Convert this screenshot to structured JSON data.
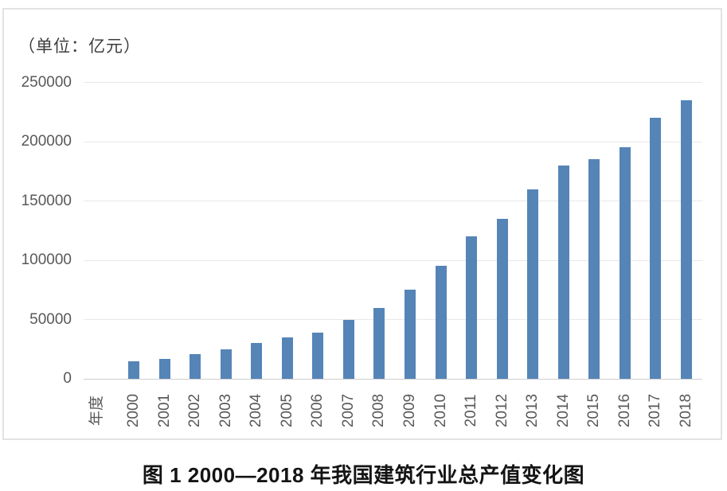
{
  "figure": {
    "unit_label": "（单位：亿元）",
    "caption": "图 1  2000—2018 年我国建筑行业总产值变化图"
  },
  "chart_data": {
    "type": "bar",
    "title": "2000—2018 年我国建筑行业总产值变化图",
    "unit": "亿元",
    "xlabel": "年度",
    "ylabel": "",
    "categories": [
      "2000",
      "2001",
      "2002",
      "2003",
      "2004",
      "2005",
      "2006",
      "2007",
      "2008",
      "2009",
      "2010",
      "2011",
      "2012",
      "2013",
      "2014",
      "2015",
      "2016",
      "2017",
      "2018"
    ],
    "values": [
      15000,
      17000,
      20500,
      25000,
      30000,
      35000,
      39000,
      50000,
      60000,
      75000,
      95000,
      120000,
      135000,
      160000,
      180000,
      185000,
      195000,
      220000,
      235000
    ],
    "ylim": [
      0,
      250000
    ],
    "yticks": [
      0,
      50000,
      100000,
      150000,
      200000,
      250000
    ],
    "grid": true,
    "legend": false,
    "colors": {
      "bar": "#5584b7",
      "gridline": "#e8e8e8",
      "axis_line": "#cfcfcf",
      "tick_label": "#595959",
      "frame_border": "#e2e2e2",
      "caption_text": "#141414"
    }
  }
}
